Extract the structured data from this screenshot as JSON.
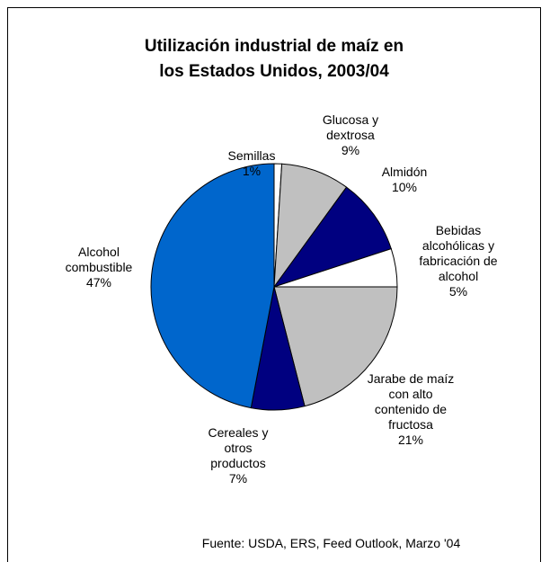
{
  "chart_data": {
    "type": "pie",
    "title": "Utilización industrial de maíz en los Estados Unidos, 2003/04",
    "source": "Fuente: USDA, ERS, Feed Outlook, Marzo '04",
    "categories": [
      "Semillas",
      "Glucosa y dextrosa",
      "Almidón",
      "Bebidas alcohólicas y fabricación de alcohol",
      "Jarabe de maíz con alto contenido de fructosa",
      "Cereales y otros productos",
      "Alcohol combustible"
    ],
    "values": [
      1,
      9,
      10,
      5,
      21,
      7,
      47
    ],
    "value_labels": [
      "1%",
      "9%",
      "10%",
      "5%",
      "21%",
      "7%",
      "47%"
    ],
    "colors": [
      "#ffffff",
      "#c0c0c0",
      "#000080",
      "#ffffff",
      "#c0c0c0",
      "#000080",
      "#0066cc"
    ]
  }
}
